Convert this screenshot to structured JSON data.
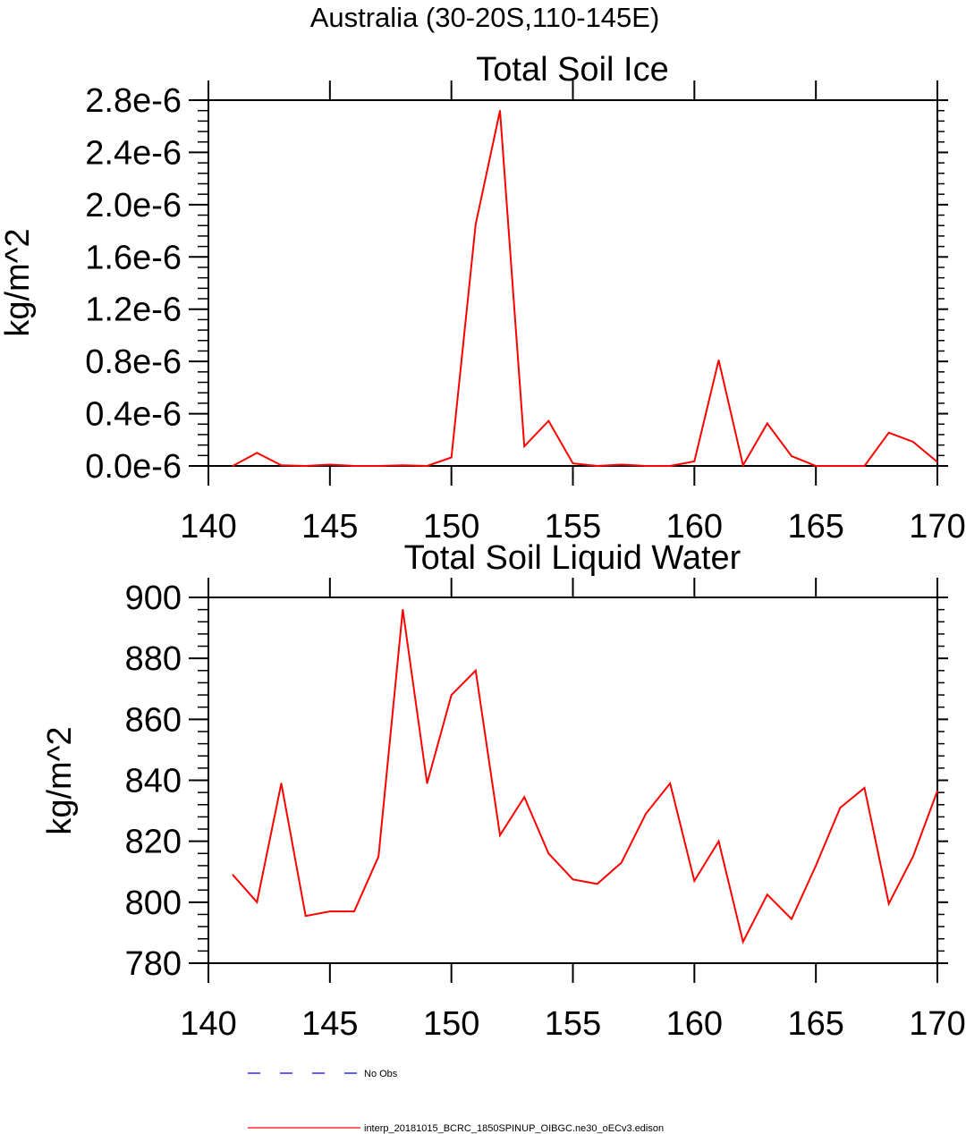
{
  "figure": {
    "title": "Australia (30-20S,110-145E)"
  },
  "legend": {
    "entries": [
      {
        "label": "No Obs",
        "color": "#0000ff",
        "dashed": true
      },
      {
        "label": "interp_20181015_BCRC_1850SPINUP_OIBGC.ne30_oECv3.edison",
        "color": "#ff0000",
        "dashed": false
      }
    ]
  },
  "colors": {
    "series": "#ff0000",
    "axis": "#000000",
    "obs": "#0000ff"
  },
  "chart_data": [
    {
      "type": "line",
      "title": "Total Soil Ice",
      "xlabel": "",
      "ylabel": "kg/m^2",
      "xlim": [
        140,
        170
      ],
      "ylim": [
        0,
        2.8e-06
      ],
      "xticks": [
        140,
        145,
        150,
        155,
        160,
        165,
        170
      ],
      "yticks": [
        0,
        4e-07,
        8e-07,
        1.2e-06,
        1.6e-06,
        2e-06,
        2.4e-06,
        2.8e-06
      ],
      "ytick_labels": [
        "0.0e-6",
        "0.4e-6",
        "0.8e-6",
        "1.2e-6",
        "1.6e-6",
        "2.0e-6",
        "2.4e-6",
        "2.8e-6"
      ],
      "series": [
        {
          "x": [
            141,
            142,
            143,
            144,
            145,
            146,
            147,
            148,
            149,
            150,
            151,
            152,
            153,
            154,
            155,
            156,
            157,
            158,
            159,
            160,
            161,
            162,
            163,
            164,
            165,
            166,
            167,
            168,
            169,
            170
          ],
          "values": [
            0.0,
            1e-07,
            5e-09,
            0.0,
            1e-08,
            0.0,
            0.0,
            5e-09,
            0.0,
            6.5e-08,
            1.85e-06,
            2.72e-06,
            1.5e-07,
            3.45e-07,
            2e-08,
            0.0,
            1e-08,
            0.0,
            0.0,
            3.5e-08,
            8.1e-07,
            5e-09,
            3.25e-07,
            7.5e-08,
            0.0,
            0.0,
            0.0,
            2.55e-07,
            1.85e-07,
            3e-08
          ]
        }
      ]
    },
    {
      "type": "line",
      "title": "Total Soil Liquid Water",
      "xlabel": "",
      "ylabel": "kg/m^2",
      "xlim": [
        140,
        170
      ],
      "ylim": [
        780,
        900
      ],
      "xticks": [
        140,
        145,
        150,
        155,
        160,
        165,
        170
      ],
      "yticks": [
        780,
        800,
        820,
        840,
        860,
        880,
        900
      ],
      "ytick_labels": [
        "780",
        "800",
        "820",
        "840",
        "860",
        "880",
        "900"
      ],
      "series": [
        {
          "x": [
            141,
            142,
            143,
            144,
            145,
            146,
            147,
            148,
            149,
            150,
            151,
            152,
            153,
            154,
            155,
            156,
            157,
            158,
            159,
            160,
            161,
            162,
            163,
            164,
            165,
            166,
            167,
            168,
            169,
            170
          ],
          "values": [
            809,
            800,
            839,
            795.5,
            797,
            797,
            815,
            896,
            839,
            868,
            876,
            822,
            834.5,
            816,
            807.5,
            806,
            813,
            829,
            839,
            807,
            820,
            787,
            802.5,
            794.5,
            812,
            831,
            837.5,
            799.5,
            815,
            836.5
          ]
        }
      ]
    }
  ]
}
